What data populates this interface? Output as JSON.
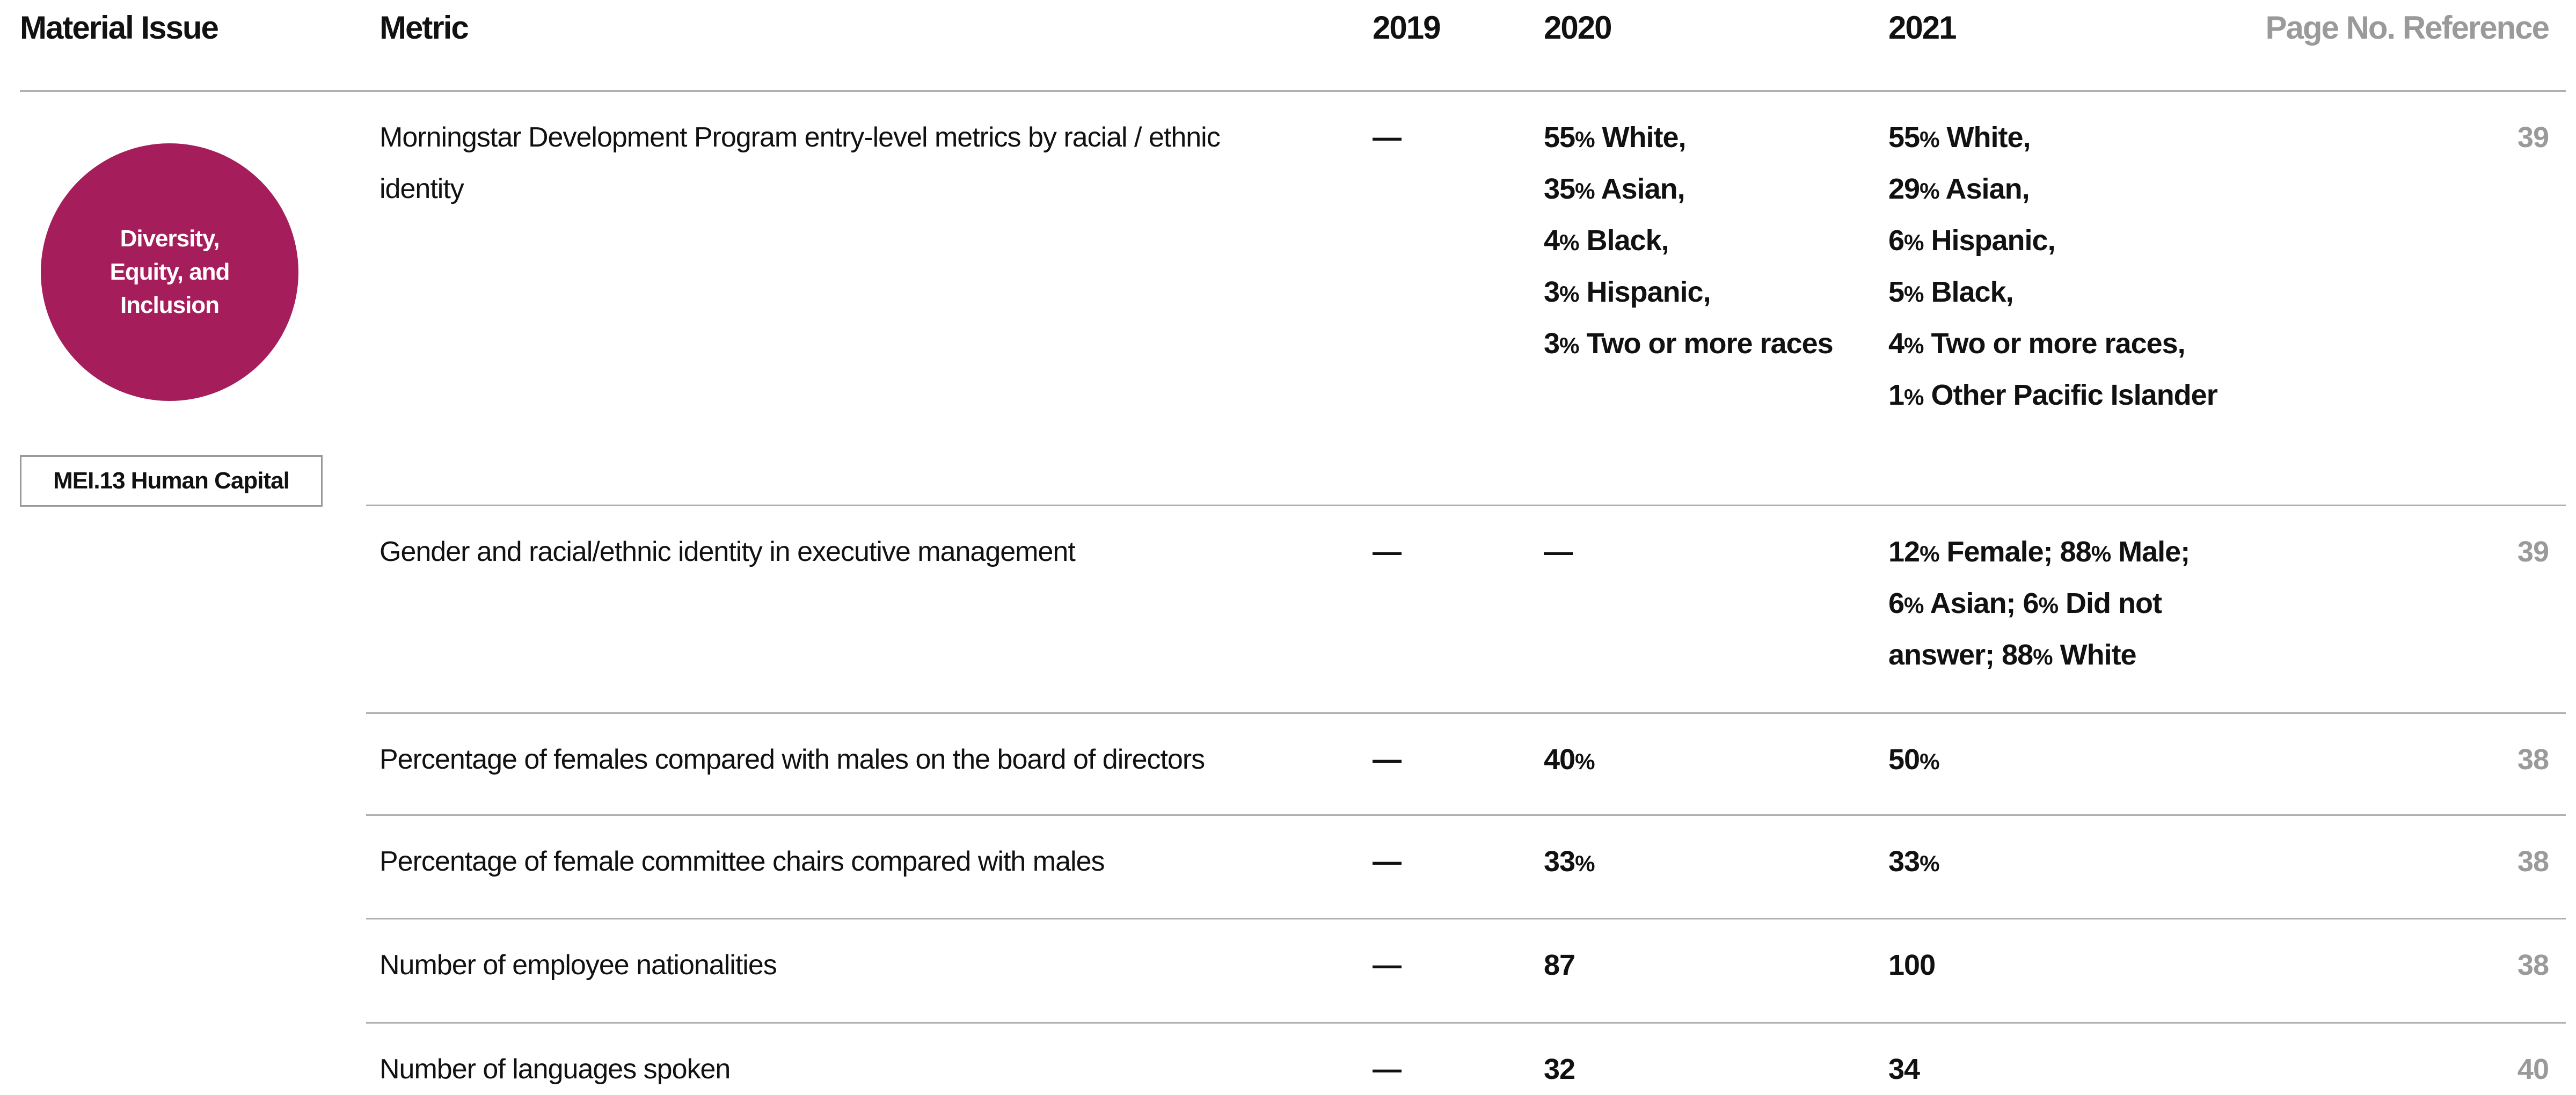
{
  "header": {
    "material_issue": "Material Issue",
    "metric": "Metric",
    "y2019": "2019",
    "y2020": "2020",
    "y2021": "2021",
    "page": "Page No. Reference"
  },
  "material_issue": {
    "badge": "Diversity, Equity, and Inclusion",
    "tag": "MEI.13 Human Capital"
  },
  "rows": [
    {
      "metric": "Morningstar Development Program entry-level metrics by racial / ethnic identity",
      "y2019": [
        "—"
      ],
      "y2020": [
        "55% White,",
        "35% Asian,",
        "4% Black,",
        "3% Hispanic,",
        "3% Two or more races"
      ],
      "y2021": [
        "55% White,",
        "29% Asian,",
        "6% Hispanic,",
        "5% Black,",
        "4% Two or more races,",
        "1% Other Pacific Islander"
      ],
      "page": "39"
    },
    {
      "metric": "Gender and racial/ethnic identity in executive management",
      "y2019": [
        "—"
      ],
      "y2020": [
        "—"
      ],
      "y2021": [
        "12% Female; 88% Male;",
        "6% Asian; 6% Did not",
        "answer; 88% White"
      ],
      "page": "39"
    },
    {
      "metric": "Percentage of females compared with males on the board of directors",
      "y2019": [
        "—"
      ],
      "y2020": [
        "40%"
      ],
      "y2021": [
        "50%"
      ],
      "page": "38"
    },
    {
      "metric": "Percentage of female committee chairs compared with males",
      "y2019": [
        "—"
      ],
      "y2020": [
        "33%"
      ],
      "y2021": [
        "33%"
      ],
      "page": "38"
    },
    {
      "metric": "Number of employee nationalities",
      "y2019": [
        "—"
      ],
      "y2020": [
        "87"
      ],
      "y2021": [
        "100"
      ],
      "page": "38"
    },
    {
      "metric": "Number of languages spoken",
      "y2019": [
        "—"
      ],
      "y2020": [
        "32"
      ],
      "y2021": [
        "34"
      ],
      "page": "40"
    }
  ]
}
